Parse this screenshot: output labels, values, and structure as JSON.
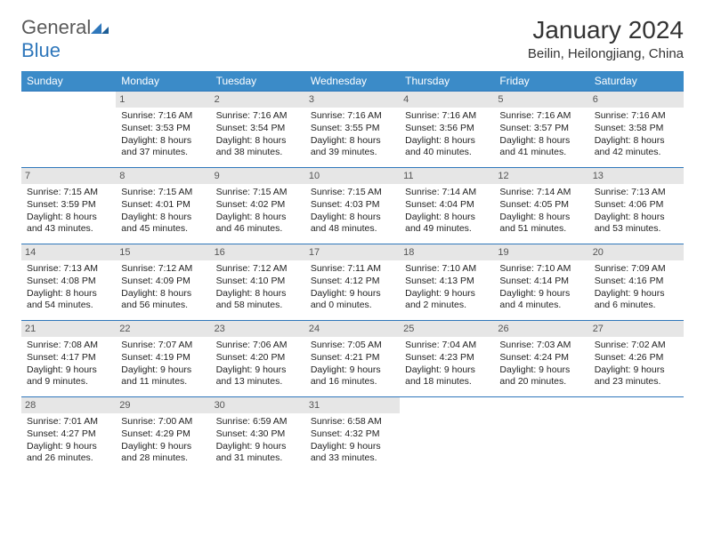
{
  "brand": {
    "name_a": "General",
    "name_b": "Blue"
  },
  "title": "January 2024",
  "location": "Beilin, Heilongjiang, China",
  "colors": {
    "header_bg": "#3b8bc8",
    "row_border": "#2f77bb",
    "daynum_bg": "#e6e6e6",
    "text": "#222222",
    "logo_gray": "#5a5a5a",
    "logo_blue": "#2f77bb"
  },
  "layout": {
    "blank_leading": 1
  },
  "weekdays": [
    "Sunday",
    "Monday",
    "Tuesday",
    "Wednesday",
    "Thursday",
    "Friday",
    "Saturday"
  ],
  "days": [
    {
      "n": 1,
      "sr": "7:16 AM",
      "ss": "3:53 PM",
      "dl": "8 hours and 37 minutes."
    },
    {
      "n": 2,
      "sr": "7:16 AM",
      "ss": "3:54 PM",
      "dl": "8 hours and 38 minutes."
    },
    {
      "n": 3,
      "sr": "7:16 AM",
      "ss": "3:55 PM",
      "dl": "8 hours and 39 minutes."
    },
    {
      "n": 4,
      "sr": "7:16 AM",
      "ss": "3:56 PM",
      "dl": "8 hours and 40 minutes."
    },
    {
      "n": 5,
      "sr": "7:16 AM",
      "ss": "3:57 PM",
      "dl": "8 hours and 41 minutes."
    },
    {
      "n": 6,
      "sr": "7:16 AM",
      "ss": "3:58 PM",
      "dl": "8 hours and 42 minutes."
    },
    {
      "n": 7,
      "sr": "7:15 AM",
      "ss": "3:59 PM",
      "dl": "8 hours and 43 minutes."
    },
    {
      "n": 8,
      "sr": "7:15 AM",
      "ss": "4:01 PM",
      "dl": "8 hours and 45 minutes."
    },
    {
      "n": 9,
      "sr": "7:15 AM",
      "ss": "4:02 PM",
      "dl": "8 hours and 46 minutes."
    },
    {
      "n": 10,
      "sr": "7:15 AM",
      "ss": "4:03 PM",
      "dl": "8 hours and 48 minutes."
    },
    {
      "n": 11,
      "sr": "7:14 AM",
      "ss": "4:04 PM",
      "dl": "8 hours and 49 minutes."
    },
    {
      "n": 12,
      "sr": "7:14 AM",
      "ss": "4:05 PM",
      "dl": "8 hours and 51 minutes."
    },
    {
      "n": 13,
      "sr": "7:13 AM",
      "ss": "4:06 PM",
      "dl": "8 hours and 53 minutes."
    },
    {
      "n": 14,
      "sr": "7:13 AM",
      "ss": "4:08 PM",
      "dl": "8 hours and 54 minutes."
    },
    {
      "n": 15,
      "sr": "7:12 AM",
      "ss": "4:09 PM",
      "dl": "8 hours and 56 minutes."
    },
    {
      "n": 16,
      "sr": "7:12 AM",
      "ss": "4:10 PM",
      "dl": "8 hours and 58 minutes."
    },
    {
      "n": 17,
      "sr": "7:11 AM",
      "ss": "4:12 PM",
      "dl": "9 hours and 0 minutes."
    },
    {
      "n": 18,
      "sr": "7:10 AM",
      "ss": "4:13 PM",
      "dl": "9 hours and 2 minutes."
    },
    {
      "n": 19,
      "sr": "7:10 AM",
      "ss": "4:14 PM",
      "dl": "9 hours and 4 minutes."
    },
    {
      "n": 20,
      "sr": "7:09 AM",
      "ss": "4:16 PM",
      "dl": "9 hours and 6 minutes."
    },
    {
      "n": 21,
      "sr": "7:08 AM",
      "ss": "4:17 PM",
      "dl": "9 hours and 9 minutes."
    },
    {
      "n": 22,
      "sr": "7:07 AM",
      "ss": "4:19 PM",
      "dl": "9 hours and 11 minutes."
    },
    {
      "n": 23,
      "sr": "7:06 AM",
      "ss": "4:20 PM",
      "dl": "9 hours and 13 minutes."
    },
    {
      "n": 24,
      "sr": "7:05 AM",
      "ss": "4:21 PM",
      "dl": "9 hours and 16 minutes."
    },
    {
      "n": 25,
      "sr": "7:04 AM",
      "ss": "4:23 PM",
      "dl": "9 hours and 18 minutes."
    },
    {
      "n": 26,
      "sr": "7:03 AM",
      "ss": "4:24 PM",
      "dl": "9 hours and 20 minutes."
    },
    {
      "n": 27,
      "sr": "7:02 AM",
      "ss": "4:26 PM",
      "dl": "9 hours and 23 minutes."
    },
    {
      "n": 28,
      "sr": "7:01 AM",
      "ss": "4:27 PM",
      "dl": "9 hours and 26 minutes."
    },
    {
      "n": 29,
      "sr": "7:00 AM",
      "ss": "4:29 PM",
      "dl": "9 hours and 28 minutes."
    },
    {
      "n": 30,
      "sr": "6:59 AM",
      "ss": "4:30 PM",
      "dl": "9 hours and 31 minutes."
    },
    {
      "n": 31,
      "sr": "6:58 AM",
      "ss": "4:32 PM",
      "dl": "9 hours and 33 minutes."
    }
  ],
  "labels": {
    "sunrise": "Sunrise:",
    "sunset": "Sunset:",
    "daylight": "Daylight:"
  }
}
